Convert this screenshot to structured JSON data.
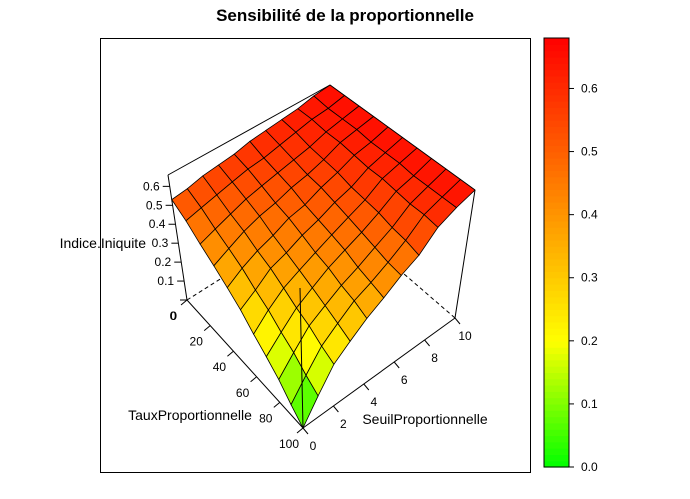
{
  "chart_data": {
    "type": "surface3d",
    "title": "Sensibilité de la proportionnelle",
    "xlabel": "TauxProportionnelle",
    "ylabel": "SeuilProportionnelle",
    "zlabel": "Indice.Iniquite",
    "x": [
      0,
      10,
      20,
      30,
      40,
      50,
      60,
      70,
      80,
      90,
      100
    ],
    "y": [
      0,
      1,
      2,
      3,
      4,
      5,
      6,
      7,
      8,
      9,
      10
    ],
    "z": [
      [
        0.53,
        0.54,
        0.56,
        0.57,
        0.58,
        0.6,
        0.61,
        0.62,
        0.63,
        0.65,
        0.66
      ],
      [
        0.48,
        0.5,
        0.52,
        0.54,
        0.56,
        0.57,
        0.59,
        0.61,
        0.63,
        0.64,
        0.66
      ],
      [
        0.42,
        0.45,
        0.48,
        0.51,
        0.53,
        0.55,
        0.57,
        0.59,
        0.62,
        0.64,
        0.66
      ],
      [
        0.37,
        0.41,
        0.45,
        0.48,
        0.5,
        0.53,
        0.55,
        0.58,
        0.62,
        0.64,
        0.66
      ],
      [
        0.32,
        0.37,
        0.41,
        0.44,
        0.48,
        0.5,
        0.54,
        0.57,
        0.61,
        0.63,
        0.66
      ],
      [
        0.27,
        0.32,
        0.38,
        0.41,
        0.45,
        0.48,
        0.52,
        0.55,
        0.6,
        0.63,
        0.66
      ],
      [
        0.21,
        0.28,
        0.34,
        0.38,
        0.42,
        0.46,
        0.5,
        0.54,
        0.6,
        0.63,
        0.66
      ],
      [
        0.16,
        0.23,
        0.3,
        0.35,
        0.4,
        0.44,
        0.48,
        0.53,
        0.59,
        0.62,
        0.66
      ],
      [
        0.11,
        0.19,
        0.27,
        0.32,
        0.37,
        0.41,
        0.46,
        0.51,
        0.58,
        0.62,
        0.66
      ],
      [
        0.05,
        0.14,
        0.23,
        0.29,
        0.35,
        0.39,
        0.44,
        0.5,
        0.58,
        0.62,
        0.66
      ],
      [
        0.0,
        0.1,
        0.2,
        0.26,
        0.32,
        0.37,
        0.43,
        0.48,
        0.57,
        0.62,
        0.66
      ]
    ],
    "x_ticks": [
      0,
      20,
      40,
      60,
      80,
      100
    ],
    "y_ticks": [
      0,
      2,
      4,
      6,
      8,
      10
    ],
    "z_ticks": [
      "0",
      "0.1",
      "0.2",
      "0.3",
      "0.4",
      "0.5",
      "0.6"
    ],
    "xlim": [
      0,
      100
    ],
    "ylim": [
      0,
      10
    ],
    "zlim": [
      0,
      0.66
    ],
    "colorbar": {
      "range": [
        0,
        0.68
      ],
      "ticks": [
        "0.0",
        "0.1",
        "0.2",
        "0.3",
        "0.4",
        "0.5",
        "0.6"
      ],
      "colors": {
        "low": "#00ff00",
        "mid": "#ffff00",
        "high": "#ff0000"
      },
      "mid_value": 0.2
    }
  }
}
